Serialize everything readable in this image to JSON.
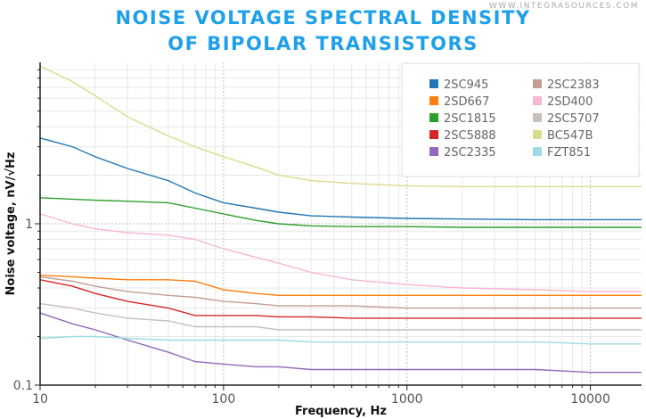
{
  "watermark": "WWW.INTEGRASOURCES.COM",
  "chart_data": {
    "type": "line",
    "title_line1": "NOISE VOLTAGE SPECTRAL DENSITY",
    "title_line2": "OF BIPOLAR TRANSISTORS",
    "xlabel": "Frequency, Hz",
    "ylabel": "Noise voltage, nV/√Hz",
    "xscale": "log",
    "yscale": "log",
    "xlim": [
      10,
      19000
    ],
    "ylim": [
      0.1,
      10
    ],
    "xticks": [
      "10",
      "100",
      "1000",
      "10000"
    ],
    "yticks": [
      "0.1",
      "1"
    ],
    "grid": true,
    "legend_position": "top-right",
    "x": [
      10,
      15,
      20,
      30,
      50,
      70,
      100,
      150,
      200,
      300,
      500,
      1000,
      2000,
      5000,
      10000,
      19000
    ],
    "series": [
      {
        "name": "2SC945",
        "color": "#1f77b4",
        "values": [
          3.4,
          3.0,
          2.6,
          2.2,
          1.85,
          1.55,
          1.35,
          1.25,
          1.18,
          1.12,
          1.1,
          1.08,
          1.07,
          1.06,
          1.06,
          1.06
        ]
      },
      {
        "name": "2SD667",
        "color": "#ff7f0e",
        "values": [
          0.48,
          0.47,
          0.46,
          0.45,
          0.45,
          0.44,
          0.39,
          0.37,
          0.36,
          0.36,
          0.36,
          0.36,
          0.36,
          0.36,
          0.36,
          0.36
        ]
      },
      {
        "name": "2SC1815",
        "color": "#2ca02c",
        "values": [
          1.45,
          1.42,
          1.4,
          1.38,
          1.35,
          1.25,
          1.15,
          1.05,
          1.0,
          0.97,
          0.96,
          0.96,
          0.95,
          0.95,
          0.95,
          0.95
        ]
      },
      {
        "name": "2SC5888",
        "color": "#d62728",
        "values": [
          0.45,
          0.41,
          0.37,
          0.33,
          0.3,
          0.27,
          0.27,
          0.27,
          0.265,
          0.265,
          0.26,
          0.26,
          0.26,
          0.26,
          0.26,
          0.26
        ]
      },
      {
        "name": "2SC2335",
        "color": "#9467bd",
        "values": [
          0.28,
          0.24,
          0.22,
          0.19,
          0.16,
          0.14,
          0.135,
          0.13,
          0.13,
          0.125,
          0.125,
          0.125,
          0.125,
          0.125,
          0.12,
          0.12
        ]
      },
      {
        "name": "2SC2383",
        "color": "#c49c94",
        "values": [
          0.47,
          0.44,
          0.41,
          0.38,
          0.36,
          0.35,
          0.33,
          0.32,
          0.31,
          0.31,
          0.31,
          0.3,
          0.3,
          0.3,
          0.3,
          0.3
        ]
      },
      {
        "name": "2SD400",
        "color": "#f7b6d2",
        "values": [
          1.15,
          1.0,
          0.93,
          0.88,
          0.85,
          0.8,
          0.7,
          0.62,
          0.57,
          0.5,
          0.45,
          0.42,
          0.4,
          0.39,
          0.38,
          0.38
        ]
      },
      {
        "name": "2SC5707",
        "color": "#c7c0bc",
        "values": [
          0.32,
          0.3,
          0.28,
          0.26,
          0.25,
          0.23,
          0.23,
          0.23,
          0.22,
          0.22,
          0.22,
          0.22,
          0.22,
          0.22,
          0.22,
          0.22
        ]
      },
      {
        "name": "BC547B",
        "color": "#dbdb8d",
        "values": [
          9.5,
          7.6,
          6.2,
          4.6,
          3.5,
          3.0,
          2.6,
          2.25,
          2.0,
          1.85,
          1.78,
          1.72,
          1.7,
          1.7,
          1.7,
          1.7
        ]
      },
      {
        "name": "FZT851",
        "color": "#9edae5",
        "values": [
          0.195,
          0.2,
          0.2,
          0.195,
          0.19,
          0.19,
          0.19,
          0.19,
          0.19,
          0.185,
          0.185,
          0.185,
          0.185,
          0.185,
          0.18,
          0.18
        ]
      }
    ]
  }
}
